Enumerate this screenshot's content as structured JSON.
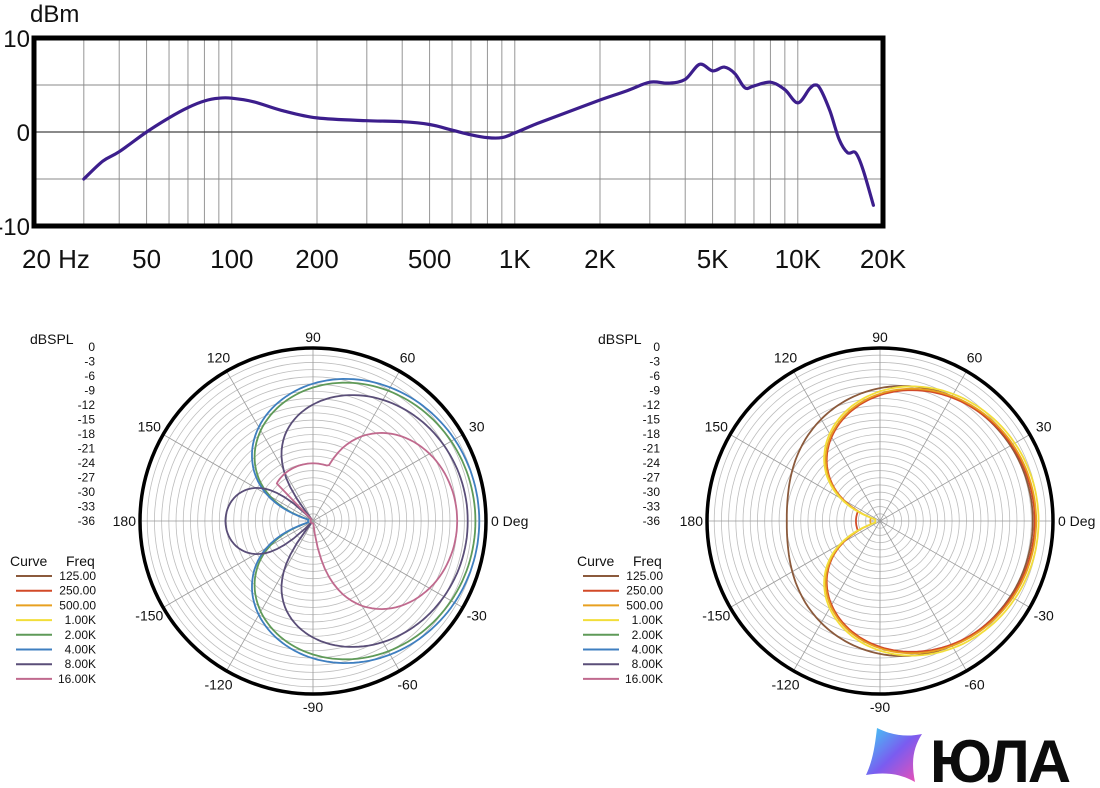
{
  "chart_data": [
    {
      "type": "line",
      "ylabel": "dBm",
      "x_scale": "log",
      "xlim": [
        20,
        20000
      ],
      "ylim": [
        -10,
        10
      ],
      "y_ticks": [
        "10",
        "0",
        "-10"
      ],
      "x_ticks": [
        {
          "value": 20,
          "label": "20  Hz"
        },
        {
          "value": 50,
          "label": "50"
        },
        {
          "value": 100,
          "label": "100"
        },
        {
          "value": 200,
          "label": "200"
        },
        {
          "value": 500,
          "label": "500"
        },
        {
          "value": 1000,
          "label": "1K"
        },
        {
          "value": 2000,
          "label": "2K"
        },
        {
          "value": 5000,
          "label": "5K"
        },
        {
          "value": 10000,
          "label": "10K"
        },
        {
          "value": 20000,
          "label": "20K"
        }
      ],
      "grid": true,
      "series": [
        {
          "color": "#3c1e8c",
          "points": [
            [
              30,
              -5.0
            ],
            [
              35,
              -3.1
            ],
            [
              40,
              -2.1
            ],
            [
              50,
              0.0
            ],
            [
              60,
              1.5
            ],
            [
              70,
              2.6
            ],
            [
              80,
              3.3
            ],
            [
              90,
              3.6
            ],
            [
              100,
              3.6
            ],
            [
              120,
              3.2
            ],
            [
              150,
              2.3
            ],
            [
              200,
              1.5
            ],
            [
              300,
              1.2
            ],
            [
              400,
              1.1
            ],
            [
              500,
              0.8
            ],
            [
              600,
              0.2
            ],
            [
              700,
              -0.3
            ],
            [
              800,
              -0.6
            ],
            [
              900,
              -0.6
            ],
            [
              1000,
              -0.1
            ],
            [
              1200,
              0.9
            ],
            [
              1500,
              2.0
            ],
            [
              2000,
              3.4
            ],
            [
              2500,
              4.4
            ],
            [
              3000,
              5.3
            ],
            [
              3500,
              5.2
            ],
            [
              4000,
              5.6
            ],
            [
              4500,
              7.2
            ],
            [
              5000,
              6.5
            ],
            [
              5500,
              6.9
            ],
            [
              6000,
              6.2
            ],
            [
              6500,
              4.7
            ],
            [
              7000,
              4.9
            ],
            [
              8000,
              5.3
            ],
            [
              9000,
              4.5
            ],
            [
              10000,
              3.1
            ],
            [
              11000,
              4.6
            ],
            [
              11500,
              5.0
            ],
            [
              12000,
              4.6
            ],
            [
              13000,
              2.2
            ],
            [
              14000,
              -0.8
            ],
            [
              15000,
              -2.2
            ],
            [
              16000,
              -2.2
            ],
            [
              17000,
              -4.0
            ],
            [
              18500,
              -7.8
            ]
          ]
        }
      ]
    },
    {
      "type": "polar",
      "r_label": "dBSPL",
      "r_ticks": [
        "0",
        "-3",
        "-6",
        "-9",
        "-12",
        "-15",
        "-18",
        "-21",
        "-24",
        "-27",
        "-30",
        "-33",
        "-36"
      ],
      "rlim": [
        -36,
        0
      ],
      "angle_labels": [
        {
          "deg": 0,
          "label": "0 Deg"
        },
        {
          "deg": 30,
          "label": "30"
        },
        {
          "deg": 60,
          "label": "60"
        },
        {
          "deg": 90,
          "label": "90"
        },
        {
          "deg": 120,
          "label": "120"
        },
        {
          "deg": 150,
          "label": "150"
        },
        {
          "deg": 180,
          "label": "180"
        },
        {
          "deg": -150,
          "label": "-150"
        },
        {
          "deg": -120,
          "label": "-120"
        },
        {
          "deg": -90,
          "label": "-90"
        },
        {
          "deg": -60,
          "label": "-60"
        },
        {
          "deg": -30,
          "label": "-30"
        }
      ],
      "legend_header": {
        "curve": "Curve",
        "freq": "Freq"
      },
      "legend": [
        {
          "name": "125.00",
          "color": "#8b5a3c"
        },
        {
          "name": "250.00",
          "color": "#d24a28"
        },
        {
          "name": "500.00",
          "color": "#e8a020"
        },
        {
          "name": "1.00K",
          "color": "#f2de3a"
        },
        {
          "name": "2.00K",
          "color": "#5f9a58"
        },
        {
          "name": "4.00K",
          "color": "#3f7fc0"
        },
        {
          "name": "8.00K",
          "color": "#5a4e78"
        },
        {
          "name": "16.00K",
          "color": "#c06a8e"
        }
      ],
      "series": [
        {
          "name": "2.00K",
          "color": "#5f9a58",
          "max_db": -2.2,
          "rear_db": -35.0,
          "shape": "cardioid"
        },
        {
          "name": "4.00K",
          "color": "#3f7fc0",
          "max_db": -1.4,
          "rear_db": -35.0,
          "shape": "cardioid"
        },
        {
          "name": "8.00K",
          "color": "#5a4e78",
          "max_db": -3.8,
          "rear_db": -35.5,
          "shape": "cardioid_narrow"
        },
        {
          "name": "16.00K",
          "color": "#c06a8e",
          "max_db": -6.0,
          "rear_db": -35.5,
          "shape": "lobe"
        }
      ]
    },
    {
      "type": "polar",
      "r_label": "dBSPL",
      "r_ticks": [
        "0",
        "-3",
        "-6",
        "-9",
        "-12",
        "-15",
        "-18",
        "-21",
        "-24",
        "-27",
        "-30",
        "-33",
        "-36"
      ],
      "rlim": [
        -36,
        0
      ],
      "angle_labels": [
        {
          "deg": 0,
          "label": "0 Deg"
        },
        {
          "deg": 30,
          "label": "30"
        },
        {
          "deg": 60,
          "label": "60"
        },
        {
          "deg": 90,
          "label": "90"
        },
        {
          "deg": 120,
          "label": "120"
        },
        {
          "deg": 150,
          "label": "150"
        },
        {
          "deg": 180,
          "label": "180"
        },
        {
          "deg": -150,
          "label": "-150"
        },
        {
          "deg": -120,
          "label": "-120"
        },
        {
          "deg": -90,
          "label": "-90"
        },
        {
          "deg": -60,
          "label": "-60"
        },
        {
          "deg": -30,
          "label": "-30"
        }
      ],
      "legend_header": {
        "curve": "Curve",
        "freq": "Freq"
      },
      "legend": [
        {
          "name": "125.00",
          "color": "#8b5a3c"
        },
        {
          "name": "250.00",
          "color": "#d24a28"
        },
        {
          "name": "500.00",
          "color": "#e8a020"
        },
        {
          "name": "1.00K",
          "color": "#f2de3a"
        },
        {
          "name": "2.00K",
          "color": "#5f9a58"
        },
        {
          "name": "4.00K",
          "color": "#3f7fc0"
        },
        {
          "name": "8.00K",
          "color": "#5a4e78"
        },
        {
          "name": "16.00K",
          "color": "#c06a8e"
        }
      ],
      "series": [
        {
          "name": "125.00",
          "color": "#8b5a3c",
          "max_db": -4.2,
          "rear_db": -27.0,
          "shape": "cardioid_wide"
        },
        {
          "name": "250.00",
          "color": "#d24a28",
          "max_db": -3.8,
          "rear_db": -31.0,
          "shape": "cardioid"
        },
        {
          "name": "500.00",
          "color": "#e8a020",
          "max_db": -3.5,
          "rear_db": -34.0,
          "shape": "cardioid"
        },
        {
          "name": "1.00K",
          "color": "#f2de3a",
          "max_db": -3.0,
          "rear_db": -35.0,
          "shape": "cardioid"
        }
      ]
    }
  ],
  "logo": {
    "text": "ЮЛА"
  }
}
